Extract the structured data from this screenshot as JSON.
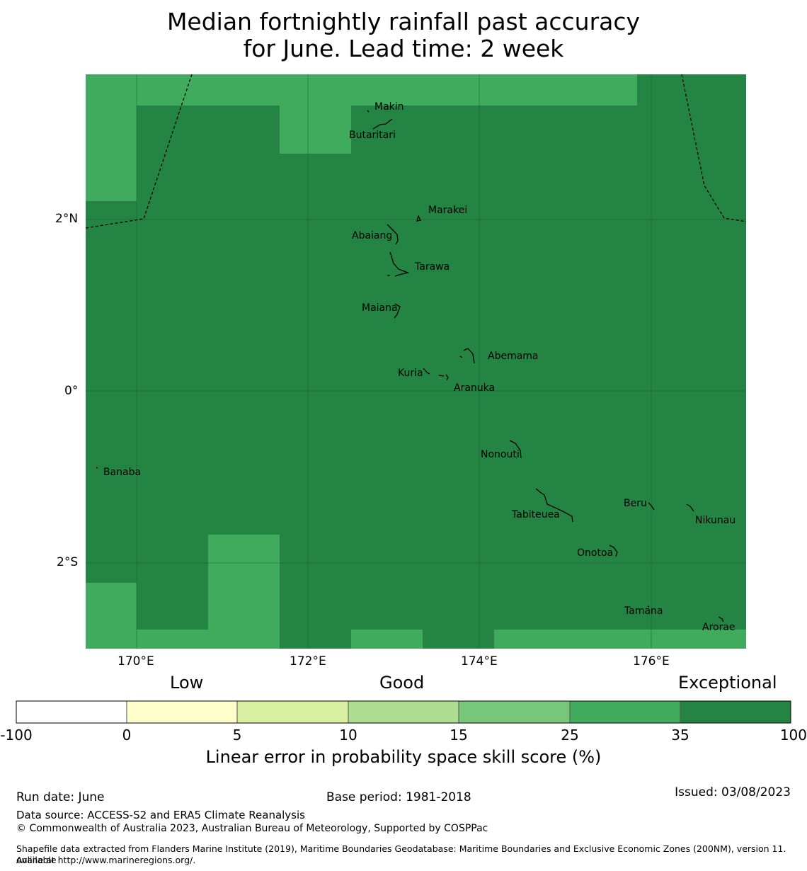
{
  "title_line1": "Median fortnightly rainfall past accuracy",
  "title_line2": "for June. Lead time: 2 week",
  "map": {
    "lon_ticks": [
      "170°E",
      "172°E",
      "174°E",
      "176°E"
    ],
    "lat_ticks": [
      "2°N",
      "0°",
      "2°S"
    ],
    "islands": [
      {
        "name": "Makin"
      },
      {
        "name": "Butaritari"
      },
      {
        "name": "Marakei"
      },
      {
        "name": "Abaiang"
      },
      {
        "name": "Tarawa"
      },
      {
        "name": "Maiana"
      },
      {
        "name": "Abemama"
      },
      {
        "name": "Kuria"
      },
      {
        "name": "Aranuka"
      },
      {
        "name": "Banaba"
      },
      {
        "name": "Nonouti"
      },
      {
        "name": "Beru"
      },
      {
        "name": "Tabiteuea"
      },
      {
        "name": "Nikunau"
      },
      {
        "name": "Onotoa"
      },
      {
        "name": "Tamana"
      },
      {
        "name": "Arorae"
      }
    ],
    "colors": {
      "skill_25_35": "#41ab5d",
      "skill_35_100": "#238443",
      "boundary": "#000000"
    }
  },
  "colorbar": {
    "categories": [
      "Low",
      "Good",
      "Exceptional"
    ],
    "ticks": [
      "-100",
      "0",
      "5",
      "10",
      "15",
      "25",
      "35",
      "100"
    ],
    "colors": [
      "#ffffff",
      "#ffffcc",
      "#d9f0a3",
      "#addd8e",
      "#78c679",
      "#41ab5d",
      "#238443"
    ],
    "label": "Linear error in probability space skill score (%)"
  },
  "footer": {
    "run_date": "Run date: June",
    "base_period": "Base period: 1981-2018",
    "issued": "Issued: 03/08/2023",
    "data_source": "Data source: ACCESS-S2 and ERA5 Climate Reanalysis",
    "copyright": "© Commonwealth of Australia 2023, Australian Bureau of Meteorology, Supported by COSPPac",
    "shapefile_line1": "Shapefile data extracted from Flanders Marine Institute (2019), Maritime Boundaries Geodatabase: Maritime Boundaries and Exclusive Economic Zones (200NM), version 11. Available",
    "shapefile_line2": "online at http://www.marineregions.org/."
  }
}
